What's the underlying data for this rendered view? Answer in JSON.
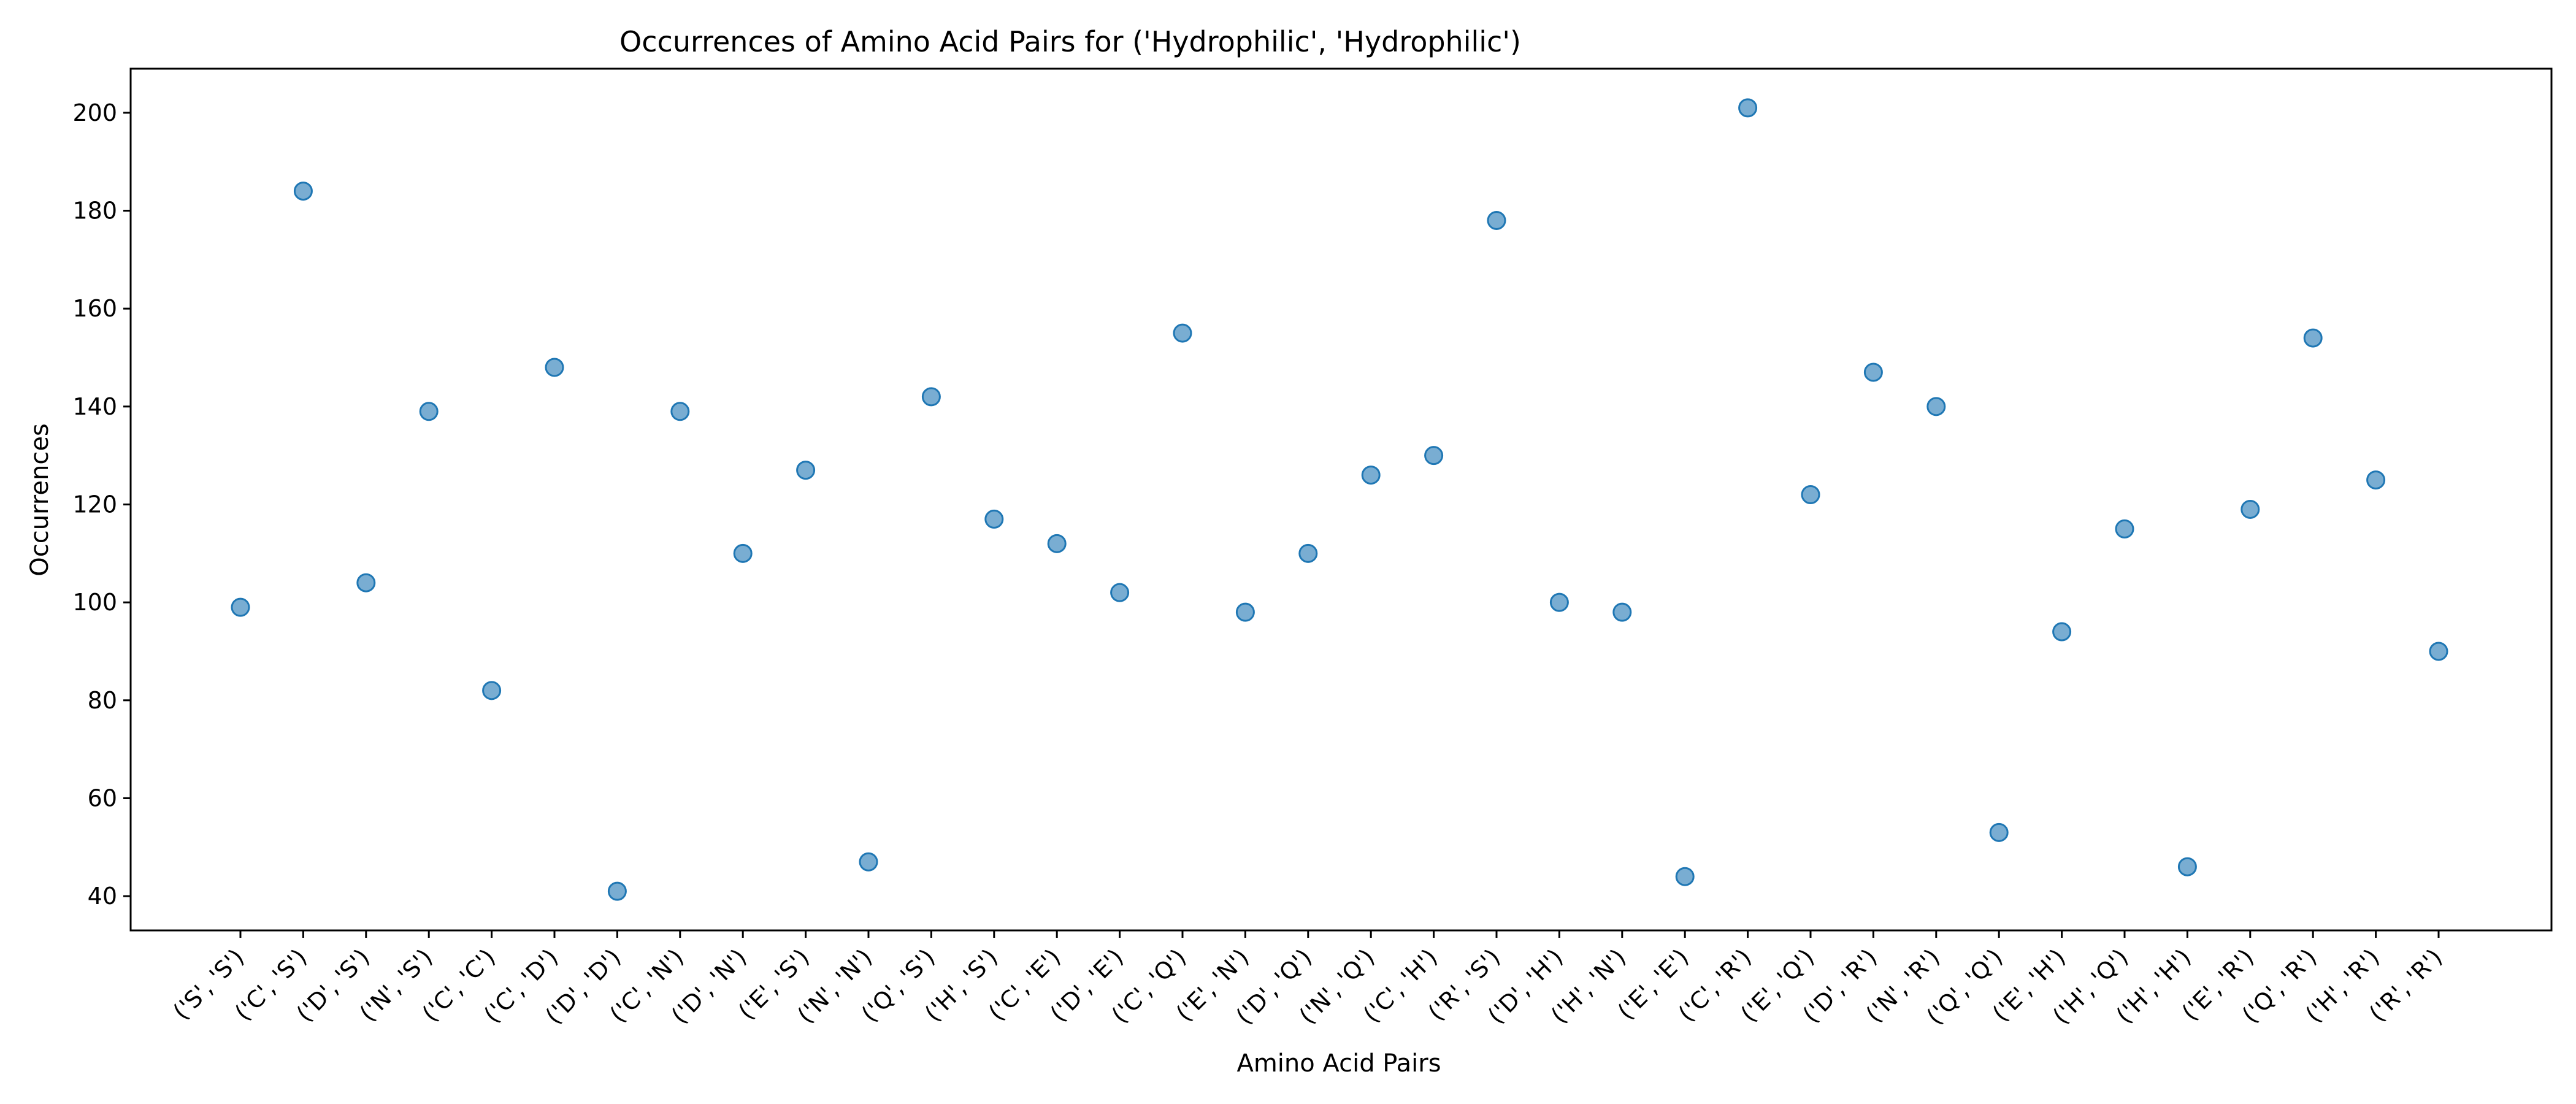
{
  "chart_data": {
    "type": "scatter",
    "title": "Occurrences of Amino Acid Pairs for ('Hydrophilic', 'Hydrophilic')",
    "xlabel": "Amino Acid Pairs",
    "ylabel": "Occurrences",
    "categories": [
      "('S', 'S')",
      "('C', 'S')",
      "('D', 'S')",
      "('N', 'S')",
      "('C', 'C')",
      "('C', 'D')",
      "('D', 'D')",
      "('C', 'N')",
      "('D', 'N')",
      "('E', 'S')",
      "('N', 'N')",
      "('Q', 'S')",
      "('H', 'S')",
      "('C', 'E')",
      "('D', 'E')",
      "('C', 'Q')",
      "('E', 'N')",
      "('D', 'Q')",
      "('N', 'Q')",
      "('C', 'H')",
      "('R', 'S')",
      "('D', 'H')",
      "('H', 'N')",
      "('E', 'E')",
      "('C', 'R')",
      "('E', 'Q')",
      "('D', 'R')",
      "('N', 'R')",
      "('Q', 'Q')",
      "('E', 'H')",
      "('H', 'Q')",
      "('H', 'H')",
      "('E', 'R')",
      "('Q', 'R')",
      "('H', 'R')",
      "('R', 'R')"
    ],
    "values": [
      99,
      184,
      104,
      139,
      82,
      148,
      41,
      139,
      110,
      127,
      47,
      142,
      117,
      112,
      102,
      155,
      98,
      110,
      126,
      130,
      178,
      100,
      98,
      44,
      201,
      122,
      147,
      140,
      53,
      94,
      115,
      46,
      119,
      154,
      125,
      90
    ],
    "ylim": [
      33,
      209
    ],
    "yticks": [
      40,
      60,
      80,
      100,
      120,
      140,
      160,
      180,
      200
    ],
    "grid": false,
    "marker_color": "#1f77b4",
    "marker_alpha": 0.6
  }
}
